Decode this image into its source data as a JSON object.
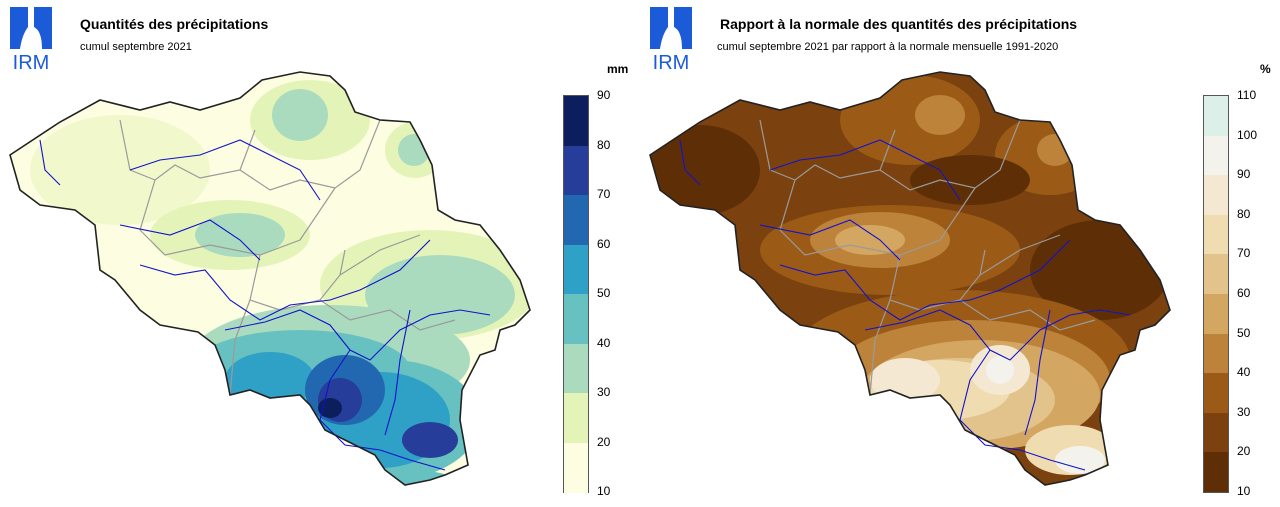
{
  "logo": {
    "text": "IRM",
    "color": "#1c5bd8"
  },
  "left_panel": {
    "title": "Quantités des précipitations",
    "subtitle": "cumul septembre 2021",
    "legend_unit": "mm",
    "legend_ticks": [
      "90",
      "80",
      "70",
      "60",
      "50",
      "40",
      "30",
      "20",
      "10"
    ],
    "legend_colors": [
      "#0d1e5c",
      "#263d99",
      "#2268b0",
      "#2fa0c6",
      "#67c1c1",
      "#aadbbf",
      "#e4f4b9",
      "#fdfde1"
    ]
  },
  "right_panel": {
    "title": "Rapport à la normale des quantités des précipitations",
    "subtitle": "cumul septembre 2021 par rapport à la normale mensuelle 1991-2020",
    "legend_unit": "%",
    "legend_ticks": [
      "110",
      "100",
      "90",
      "80",
      "70",
      "60",
      "50",
      "40",
      "30",
      "20",
      "10"
    ],
    "legend_colors": [
      "#dcefe9",
      "#f4f2ec",
      "#f4e8d2",
      "#efdcb1",
      "#e3c38c",
      "#d3a662",
      "#bd833a",
      "#9b5b17",
      "#7b420f",
      "#5e2f06"
    ]
  },
  "colors": {
    "border": "#222222",
    "rivers": "#1212cc",
    "provinces": "#9a9a9a"
  }
}
